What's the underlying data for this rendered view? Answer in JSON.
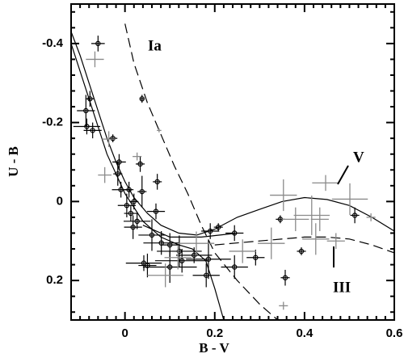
{
  "chart_data": {
    "type": "scatter",
    "xlabel": "B - V",
    "ylabel": "U - B",
    "xlim": [
      -0.12,
      0.6
    ],
    "ylim": [
      -0.5,
      0.3
    ],
    "y_inverted": true,
    "xticks": [
      0,
      0.2,
      0.4,
      0.6
    ],
    "yticks": [
      -0.4,
      -0.2,
      0,
      0.2
    ],
    "xminorticks": [
      -0.1,
      -0.08,
      -0.06,
      -0.04,
      -0.02,
      0.02,
      0.04,
      0.06,
      0.08,
      0.1,
      0.12,
      0.14,
      0.16,
      0.18,
      0.22,
      0.24,
      0.26,
      0.28,
      0.3,
      0.32,
      0.34,
      0.36,
      0.38,
      0.42,
      0.44,
      0.46,
      0.48,
      0.5,
      0.52,
      0.54,
      0.56,
      0.58
    ],
    "yminorticks": [
      -0.48,
      -0.44,
      -0.36,
      -0.32,
      -0.28,
      -0.24,
      -0.16,
      -0.12,
      -0.08,
      -0.04,
      0.04,
      0.08,
      0.12,
      0.16,
      0.24,
      0.28
    ],
    "annotations": [
      "Ia",
      "V",
      "III"
    ],
    "series": [
      {
        "color": "#000000",
        "marker": "circle",
        "x": [
          -0.06,
          -0.078,
          -0.087,
          -0.085,
          -0.072,
          -0.027,
          -0.013,
          -0.016,
          -0.009,
          0.009,
          0.004,
          0.013,
          0.027,
          0.018,
          0.038,
          0.038,
          0.034,
          0.069,
          0.06,
          0.081,
          0.1,
          0.121,
          0.154,
          0.19,
          0.208,
          0.244,
          0.186,
          0.244,
          0.291,
          0.346,
          0.357,
          0.393,
          0.512,
          0.1,
          0.05,
          0.181,
          0.042,
          0.127,
          0.02,
          0.072
        ],
        "y": [
          -0.4,
          -0.26,
          -0.23,
          -0.19,
          -0.18,
          -0.16,
          -0.1,
          -0.07,
          -0.03,
          -0.03,
          0.01,
          0.03,
          0.05,
          0.065,
          -0.025,
          -0.26,
          -0.095,
          0.025,
          0.085,
          0.105,
          0.11,
          0.126,
          0.136,
          0.075,
          0.065,
          0.08,
          0.146,
          0.166,
          0.142,
          0.045,
          0.193,
          0.126,
          0.035,
          0.166,
          0.162,
          0.187,
          0.156,
          0.15,
          0,
          -0.05
        ],
        "xerr": [
          0.015,
          0.01,
          0.02,
          0.03,
          0.02,
          0.01,
          0.015,
          0.01,
          0.02,
          0.01,
          0.02,
          0.015,
          0.03,
          0.02,
          0.01,
          0.005,
          0.01,
          0.02,
          0.03,
          0.04,
          0.02,
          0.05,
          0.04,
          0.02,
          0.01,
          0.02,
          0.05,
          0.03,
          0.02,
          0.01,
          0.01,
          0.01,
          0.01,
          0.06,
          0.02,
          0.03,
          0.04,
          0.06,
          0.01,
          0.01
        ],
        "yerr": [
          0.02,
          0.02,
          0.04,
          0.02,
          0.02,
          0.01,
          0.02,
          0.03,
          0.02,
          0.02,
          0.03,
          0.02,
          0.02,
          0.03,
          0.04,
          0.01,
          0.02,
          0.02,
          0.04,
          0.03,
          0.03,
          0.04,
          0.02,
          0.02,
          0.01,
          0.02,
          0.05,
          0.03,
          0.02,
          0.01,
          0.02,
          0.01,
          0.02,
          0.04,
          0.03,
          0.03,
          0.02,
          0.03,
          0.02,
          0.02
        ]
      },
      {
        "color": "#8a8a8a",
        "marker": "cross",
        "x": [
          -0.067,
          -0.045,
          0.076,
          0.027,
          0.159,
          0.326,
          0.353,
          0.38,
          0.416,
          0.434,
          0.447,
          0.501,
          0.425,
          0.47,
          0.353,
          0.262,
          0.09,
          0.118,
          -0.036,
          0.548
        ],
        "y": [
          -0.36,
          -0.067,
          -0.18,
          -0.114,
          0.106,
          0.106,
          -0.016,
          0.045,
          0.035,
          0.045,
          -0.047,
          -0.006,
          0.095,
          0.1,
          0.264,
          0.126,
          0.187,
          0.142,
          -0.158,
          0.04
        ],
        "xerr": [
          0.02,
          0.015,
          0.005,
          0.01,
          0.04,
          0.03,
          0.03,
          0.03,
          0.04,
          0.02,
          0.03,
          0.04,
          0.03,
          0.02,
          0.01,
          0.03,
          0.04,
          0.03,
          0.015,
          0.01
        ],
        "yerr": [
          0.02,
          0.02,
          0.005,
          0.01,
          0.03,
          0.04,
          0.04,
          0.03,
          0.05,
          0.03,
          0.02,
          0.04,
          0.04,
          0.02,
          0.01,
          0.03,
          0.03,
          0.03,
          0.02,
          0.01
        ]
      }
    ],
    "lines": [
      {
        "style": "solid",
        "color": "#000000",
        "x": [
          -0.12,
          -0.1,
          -0.08,
          -0.06,
          -0.04,
          -0.02,
          0,
          0.02,
          0.05,
          0.08,
          0.12,
          0.16,
          0.2,
          0.25,
          0.3,
          0.35,
          0.4,
          0.45,
          0.5,
          0.55,
          0.6
        ],
        "y": [
          -0.43,
          -0.37,
          -0.3,
          -0.23,
          -0.16,
          -0.1,
          -0.05,
          -0.01,
          0.03,
          0.06,
          0.08,
          0.085,
          0.07,
          0.04,
          0.02,
          0,
          -0.01,
          -0.005,
          0.01,
          0.04,
          0.075
        ]
      },
      {
        "style": "solid",
        "color": "#000000",
        "x": [
          -0.12,
          -0.08,
          -0.04,
          0,
          0.04,
          0.08,
          0.12,
          0.15,
          0.18,
          0.2,
          0.22
        ],
        "y": [
          -0.4,
          -0.26,
          -0.12,
          -0.02,
          0.05,
          0.09,
          0.11,
          0.12,
          0.15,
          0.22,
          0.3
        ]
      },
      {
        "style": "solid",
        "color": "#000000",
        "x": [
          0.04,
          0.1,
          0.17,
          0.25
        ],
        "y": [
          0.06,
          0.09,
          0.09,
          0.08
        ]
      },
      {
        "style": "dashed",
        "color": "#000000",
        "x": [
          0,
          0.02,
          0.05,
          0.08,
          0.11,
          0.14,
          0.17,
          0.2,
          0.25,
          0.3,
          0.34
        ],
        "y": [
          -0.45,
          -0.35,
          -0.25,
          -0.17,
          -0.09,
          -0.02,
          0.06,
          0.13,
          0.2,
          0.26,
          0.3
        ]
      },
      {
        "style": "dashed",
        "color": "#000000",
        "x": [
          0.2,
          0.3,
          0.4,
          0.45,
          0.5,
          0.55,
          0.6
        ],
        "y": [
          0.11,
          0.1,
          0.09,
          0.09,
          0.095,
          0.11,
          0.13
        ]
      }
    ]
  }
}
